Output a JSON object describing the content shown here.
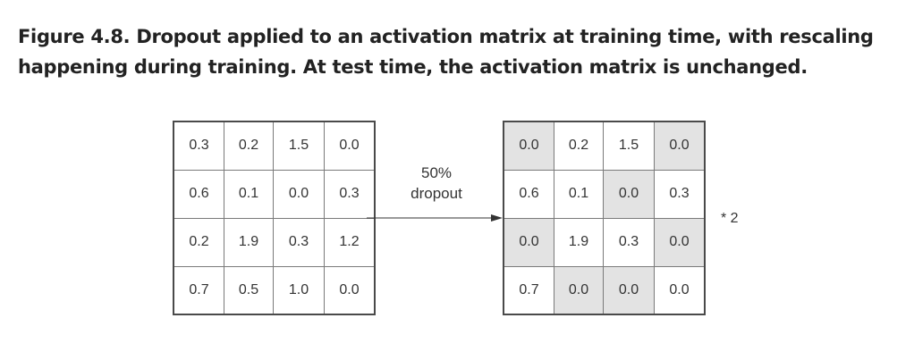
{
  "caption": "Figure 4.8. Dropout applied to an activation matrix at training time, with rescaling happening during training. At test time, the activation matrix is unchanged.",
  "input_matrix": [
    [
      "0.3",
      "0.2",
      "1.5",
      "0.0"
    ],
    [
      "0.6",
      "0.1",
      "0.0",
      "0.3"
    ],
    [
      "0.2",
      "1.9",
      "0.3",
      "1.2"
    ],
    [
      "0.7",
      "0.5",
      "1.0",
      "0.0"
    ]
  ],
  "output_matrix": [
    [
      "0.0",
      "0.2",
      "1.5",
      "0.0"
    ],
    [
      "0.6",
      "0.1",
      "0.0",
      "0.3"
    ],
    [
      "0.0",
      "1.9",
      "0.3",
      "0.0"
    ],
    [
      "0.7",
      "0.0",
      "0.0",
      "0.0"
    ]
  ],
  "dropped_mask": [
    [
      1,
      0,
      0,
      1
    ],
    [
      0,
      0,
      1,
      0
    ],
    [
      1,
      0,
      0,
      1
    ],
    [
      0,
      1,
      1,
      0
    ]
  ],
  "operation": {
    "rate": "50%",
    "name": "dropout"
  },
  "scale": "* 2",
  "colors": {
    "dropped_cell": "#e3e3e3",
    "border": "#4a4a4a",
    "text": "#333333"
  }
}
